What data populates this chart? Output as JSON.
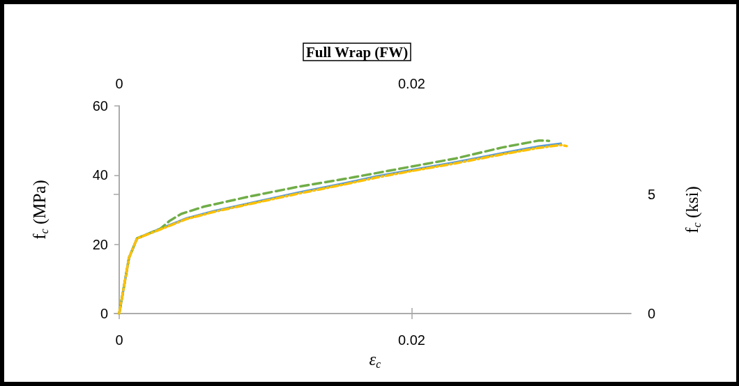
{
  "chart_data": {
    "type": "line",
    "title": "Full Wrap (FW)",
    "xlabel": "ε$_{c}$",
    "ylabel": "f$_{c}$ (MPa)",
    "y2label": "f$_{c}$ (ksi)",
    "xlim": [
      0,
      0.035
    ],
    "xticks": [
      0,
      0.02
    ],
    "x2lim": [
      0,
      0.035
    ],
    "x2ticks": [
      0,
      0.02
    ],
    "ylim": [
      0,
      60
    ],
    "yticks": [
      0,
      20,
      40,
      60
    ],
    "y2lim": [
      0,
      8.7
    ],
    "y2ticks": [
      0,
      5
    ],
    "grid": false,
    "marker": "none",
    "series": [
      {
        "color": "#5b9bd5",
        "line_style": "solid",
        "x": [
          0,
          0.00067,
          0.00122,
          0.00281,
          0.00461,
          0.0065,
          0.009,
          0.0122,
          0.0154,
          0.0176,
          0.0199,
          0.023,
          0.0262,
          0.0286,
          0.0302
        ],
        "values": [
          0,
          16.1,
          21.7,
          24.5,
          27.5,
          29.6,
          31.9,
          34.9,
          37.6,
          39.6,
          41.4,
          43.7,
          46.3,
          48.2,
          49.1
        ]
      },
      {
        "color": "#70ad47",
        "line_style": "dashed",
        "x": [
          0,
          0.00067,
          0.00122,
          0.00281,
          0.00345,
          0.00424,
          0.0058,
          0.009,
          0.0122,
          0.0154,
          0.0176,
          0.0199,
          0.023,
          0.0262,
          0.0281,
          0.0287,
          0.0294
        ],
        "values": [
          0,
          16.1,
          21.7,
          24.5,
          26.8,
          28.8,
          30.9,
          33.9,
          36.6,
          38.9,
          40.6,
          42.4,
          44.8,
          48.0,
          49.5,
          50.0,
          49.9
        ]
      },
      {
        "color": "#ffc000",
        "line_style": "dashdot",
        "x": [
          0,
          0.00067,
          0.00122,
          0.00281,
          0.00461,
          0.0065,
          0.009,
          0.0122,
          0.0154,
          0.0176,
          0.0199,
          0.023,
          0.0262,
          0.0286,
          0.0302,
          0.0306
        ],
        "values": [
          0,
          16.1,
          21.7,
          24.3,
          27.3,
          29.4,
          31.7,
          34.6,
          37.3,
          39.3,
          41.1,
          43.4,
          46.0,
          47.8,
          48.7,
          48.4
        ]
      }
    ]
  }
}
